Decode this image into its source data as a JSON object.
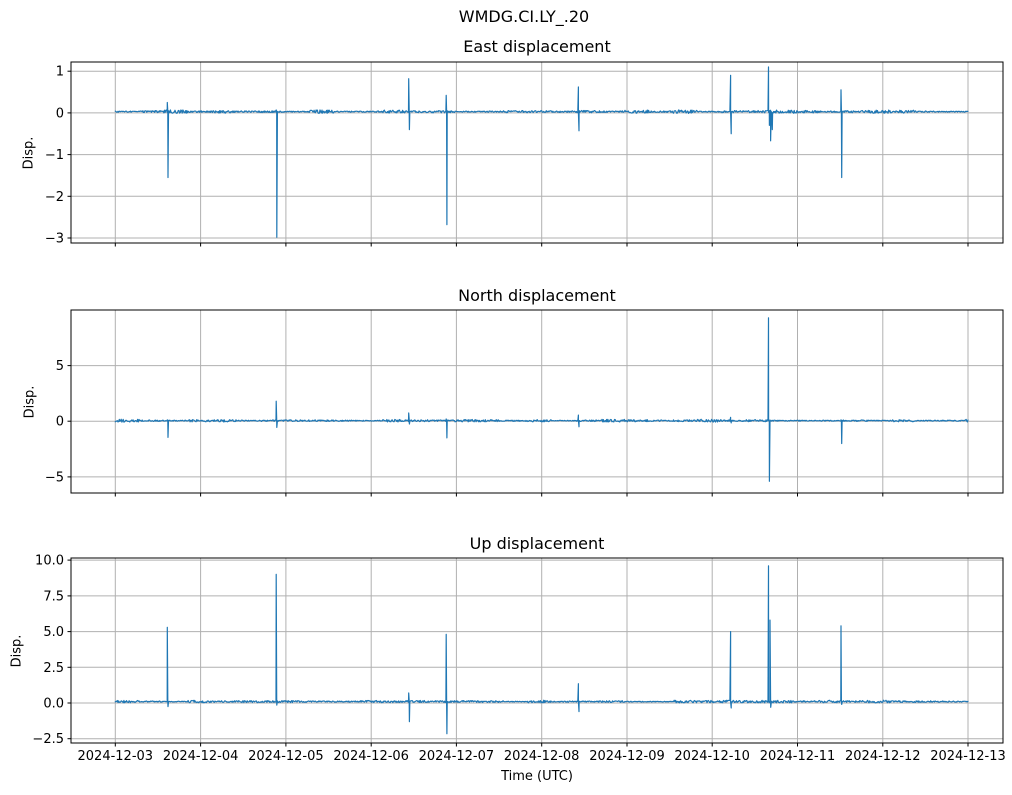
{
  "figure": {
    "suptitle": "WMDG.CI.LY_.20",
    "background": "#ffffff",
    "line_color": "#1f77b4",
    "grid_color": "#b0b0b0",
    "axis_color": "#000000",
    "time_axis": {
      "label": "Time (UTC)",
      "xlim": [
        -0.52,
        10.41
      ],
      "tick_values": [
        0,
        1,
        2,
        3,
        4,
        5,
        6,
        7,
        8,
        9,
        10
      ],
      "tick_labels": [
        "2024-12-03",
        "2024-12-04",
        "2024-12-05",
        "2024-12-06",
        "2024-12-07",
        "2024-12-08",
        "2024-12-09",
        "2024-12-10",
        "2024-12-11",
        "2024-12-12",
        "2024-12-13"
      ]
    }
  },
  "chart_data": [
    {
      "type": "line",
      "id": "east",
      "title": "East displacement",
      "ylabel": "Disp.",
      "legend": null,
      "grid": true,
      "x_unit": "days since 2024-12-03 00:00 UTC",
      "ylim": [
        -3.12,
        1.22
      ],
      "yticks": [
        {
          "v": 1,
          "label": "1"
        },
        {
          "v": 0,
          "label": "0"
        },
        {
          "v": -1,
          "label": "−1"
        },
        {
          "v": -2,
          "label": "−2"
        },
        {
          "v": -3,
          "label": "−3"
        }
      ],
      "baseline": 0.03,
      "noise_amplitude": 0.03,
      "spikes": [
        {
          "t": 0.609,
          "points": [
            [
              0,
              0.25
            ],
            [
              0.008,
              -1.55
            ],
            [
              0.016,
              0.05
            ]
          ]
        },
        {
          "t": 1.886,
          "points": [
            [
              0,
              0.07
            ],
            [
              0.008,
              -2.98
            ],
            [
              0.016,
              0.03
            ]
          ]
        },
        {
          "t": 3.44,
          "points": [
            [
              0,
              0.82
            ],
            [
              0.008,
              -0.4
            ],
            [
              0.016,
              0.03
            ]
          ]
        },
        {
          "t": 3.88,
          "points": [
            [
              0,
              0.42
            ],
            [
              0.008,
              -2.68
            ],
            [
              0.016,
              0.03
            ]
          ]
        },
        {
          "t": 5.43,
          "points": [
            [
              0,
              0.62
            ],
            [
              0.008,
              -0.43
            ],
            [
              0.016,
              0.03
            ]
          ]
        },
        {
          "t": 7.215,
          "points": [
            [
              0,
              0.9
            ],
            [
              0.008,
              -0.5
            ],
            [
              0.016,
              0.03
            ]
          ]
        },
        {
          "t": 7.66,
          "points": [
            [
              0,
              1.1
            ],
            [
              0.01,
              -0.3
            ],
            [
              0.025,
              -0.67
            ],
            [
              0.045,
              -0.4
            ],
            [
              0.06,
              0.03
            ]
          ]
        },
        {
          "t": 8.51,
          "points": [
            [
              0,
              0.55
            ],
            [
              0.008,
              -1.55
            ],
            [
              0.016,
              0.03
            ]
          ]
        }
      ]
    },
    {
      "type": "line",
      "id": "north",
      "title": "North displacement",
      "ylabel": "Disp.",
      "legend": null,
      "grid": true,
      "x_unit": "days since 2024-12-03 00:00 UTC",
      "ylim": [
        -6.45,
        10.0
      ],
      "yticks": [
        {
          "v": 5,
          "label": "5"
        },
        {
          "v": 0,
          "label": "0"
        },
        {
          "v": -5,
          "label": "−5"
        }
      ],
      "baseline": 0.05,
      "noise_amplitude": 0.09,
      "spikes": [
        {
          "t": 0.609,
          "points": [
            [
              0,
              0.12
            ],
            [
              0.008,
              -1.45
            ],
            [
              0.016,
              0.05
            ]
          ]
        },
        {
          "t": 1.886,
          "points": [
            [
              0,
              1.8
            ],
            [
              0.008,
              -0.55
            ],
            [
              0.016,
              0.05
            ]
          ]
        },
        {
          "t": 3.44,
          "points": [
            [
              0,
              0.74
            ],
            [
              0.008,
              -0.25
            ],
            [
              0.016,
              0.05
            ]
          ]
        },
        {
          "t": 3.88,
          "points": [
            [
              0,
              0.2
            ],
            [
              0.008,
              -1.5
            ],
            [
              0.016,
              0.05
            ]
          ]
        },
        {
          "t": 5.43,
          "points": [
            [
              0,
              0.55
            ],
            [
              0.008,
              -0.5
            ],
            [
              0.016,
              0.05
            ]
          ]
        },
        {
          "t": 7.215,
          "points": [
            [
              0,
              0.35
            ],
            [
              0.008,
              -0.15
            ],
            [
              0.016,
              0.05
            ]
          ]
        },
        {
          "t": 7.66,
          "points": [
            [
              0,
              9.3
            ],
            [
              0.01,
              -5.4
            ],
            [
              0.02,
              0.05
            ]
          ]
        },
        {
          "t": 8.51,
          "points": [
            [
              0,
              0.12
            ],
            [
              0.008,
              -2.0
            ],
            [
              0.016,
              0.05
            ]
          ]
        }
      ]
    },
    {
      "type": "line",
      "id": "up",
      "title": "Up displacement",
      "ylabel": "Disp.",
      "legend": null,
      "grid": true,
      "x_unit": "days since 2024-12-03 00:00 UTC",
      "ylim": [
        -2.8,
        10.15
      ],
      "yticks": [
        {
          "v": 10,
          "label": "10.0"
        },
        {
          "v": 7.5,
          "label": "7.5"
        },
        {
          "v": 5,
          "label": "5.0"
        },
        {
          "v": 2.5,
          "label": "2.5"
        },
        {
          "v": 0,
          "label": "0.0"
        },
        {
          "v": -2.5,
          "label": "−2.5"
        }
      ],
      "baseline": 0.1,
      "noise_amplitude": 0.07,
      "spikes": [
        {
          "t": 0.609,
          "points": [
            [
              0,
              5.3
            ],
            [
              0.008,
              -0.25
            ],
            [
              0.016,
              0.1
            ]
          ]
        },
        {
          "t": 1.886,
          "points": [
            [
              0,
              9.0
            ],
            [
              0.008,
              -0.15
            ],
            [
              0.016,
              0.1
            ]
          ]
        },
        {
          "t": 3.44,
          "points": [
            [
              0,
              0.7
            ],
            [
              0.008,
              -1.3
            ],
            [
              0.016,
              0.1
            ]
          ]
        },
        {
          "t": 3.88,
          "points": [
            [
              0,
              4.8
            ],
            [
              0.008,
              -2.15
            ],
            [
              0.016,
              0.1
            ]
          ]
        },
        {
          "t": 5.43,
          "points": [
            [
              0,
              1.35
            ],
            [
              0.008,
              -0.6
            ],
            [
              0.016,
              0.1
            ]
          ]
        },
        {
          "t": 7.215,
          "points": [
            [
              0,
              5.0
            ],
            [
              0.008,
              -0.35
            ],
            [
              0.016,
              0.1
            ]
          ]
        },
        {
          "t": 7.66,
          "points": [
            [
              0,
              9.6
            ],
            [
              0.012,
              0.1
            ],
            [
              0.018,
              5.8
            ],
            [
              0.026,
              -0.3
            ],
            [
              0.034,
              0.1
            ]
          ]
        },
        {
          "t": 8.51,
          "points": [
            [
              0,
              5.4
            ],
            [
              0.008,
              -0.1
            ],
            [
              0.016,
              0.1
            ]
          ]
        }
      ]
    }
  ]
}
